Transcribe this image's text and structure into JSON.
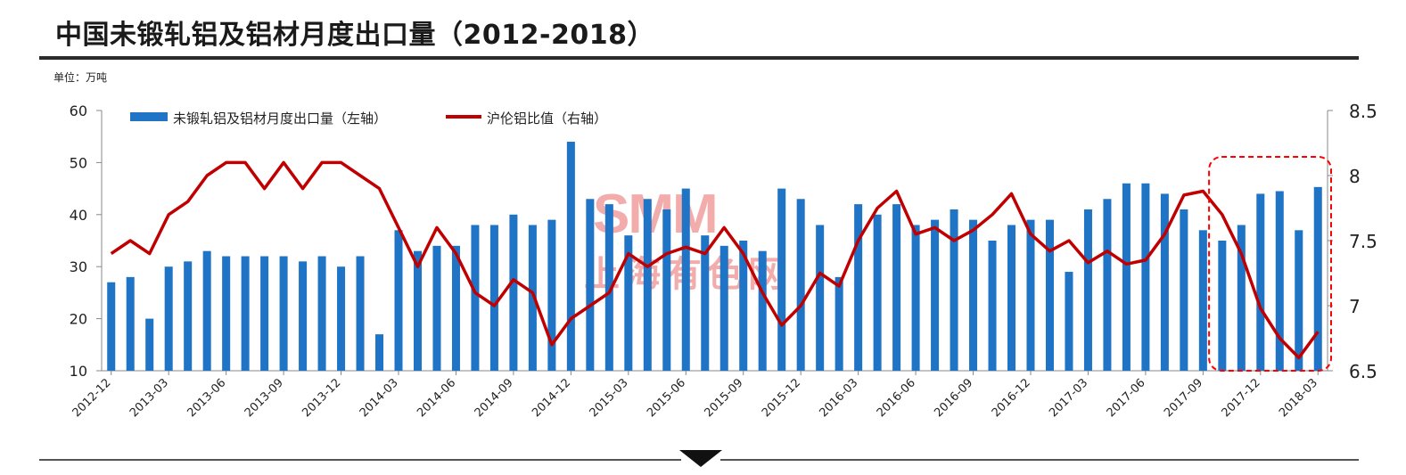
{
  "title": "中国未锻轧铝及铝材月度出口量（2012-2018）",
  "unit": "单位：万吨",
  "watermark": {
    "main": "SMM",
    "sub": "上海有色网"
  },
  "colors": {
    "bar": "#1f74c5",
    "line": "#c00000",
    "highlight": "#ff0000"
  },
  "chart_data": {
    "type": "bar",
    "series": [
      {
        "name": "未锻轧铝及铝材月度出口量（左轴）",
        "type": "bar",
        "axis": "left",
        "values": [
          27,
          28,
          20,
          30,
          31,
          33,
          32,
          32,
          32,
          32,
          31,
          32,
          30,
          32,
          17,
          37,
          33,
          34,
          34,
          38,
          38,
          40,
          38,
          39,
          54,
          43,
          42,
          36,
          43,
          41,
          45,
          36,
          34,
          35,
          33,
          45,
          43,
          38,
          28,
          42,
          40,
          42,
          38,
          39,
          41,
          39,
          35,
          38,
          39,
          39,
          29,
          41,
          43,
          46,
          46,
          44,
          41,
          37,
          35,
          38,
          44,
          44.5,
          37,
          45.3
        ]
      },
      {
        "name": "沪伦铝比值（右轴）",
        "type": "line",
        "axis": "right",
        "values": [
          7.4,
          7.5,
          7.4,
          7.7,
          7.8,
          8.0,
          8.1,
          8.1,
          7.9,
          8.1,
          7.9,
          8.1,
          8.1,
          8.0,
          7.9,
          7.6,
          7.3,
          7.6,
          7.4,
          7.1,
          7.0,
          7.2,
          7.1,
          6.7,
          6.9,
          7.0,
          7.1,
          7.4,
          7.3,
          7.4,
          7.45,
          7.4,
          7.6,
          7.4,
          7.1,
          6.85,
          7.0,
          7.25,
          7.15,
          7.5,
          7.75,
          7.88,
          7.55,
          7.6,
          7.5,
          7.58,
          7.7,
          7.86,
          7.55,
          7.42,
          7.5,
          7.33,
          7.42,
          7.32,
          7.35,
          7.55,
          7.85,
          7.88,
          7.7,
          7.4,
          6.98,
          6.75,
          6.6,
          6.8
        ]
      }
    ],
    "x_ticks": [
      "2012-12",
      "2013-03",
      "2013-06",
      "2013-09",
      "2013-12",
      "2014-03",
      "2014-06",
      "2014-09",
      "2014-12",
      "2015-03",
      "2015-06",
      "2015-09",
      "2015-12",
      "2016-03",
      "2016-06",
      "2016-09",
      "2016-12",
      "2017-03",
      "2017-06",
      "2017-09",
      "2017-12",
      "2018-03"
    ],
    "left_axis": {
      "ticks": [
        "60",
        "50",
        "40",
        "30",
        "20",
        "10"
      ],
      "range": [
        10,
        60
      ]
    },
    "right_axis": {
      "ticks": [
        "8.5",
        "8",
        "7.5",
        "7",
        "6.5"
      ],
      "range": [
        6.5,
        8.5
      ]
    },
    "legend_position": "top-left",
    "highlight_range": {
      "from_index": 58,
      "to_index": 63
    }
  }
}
